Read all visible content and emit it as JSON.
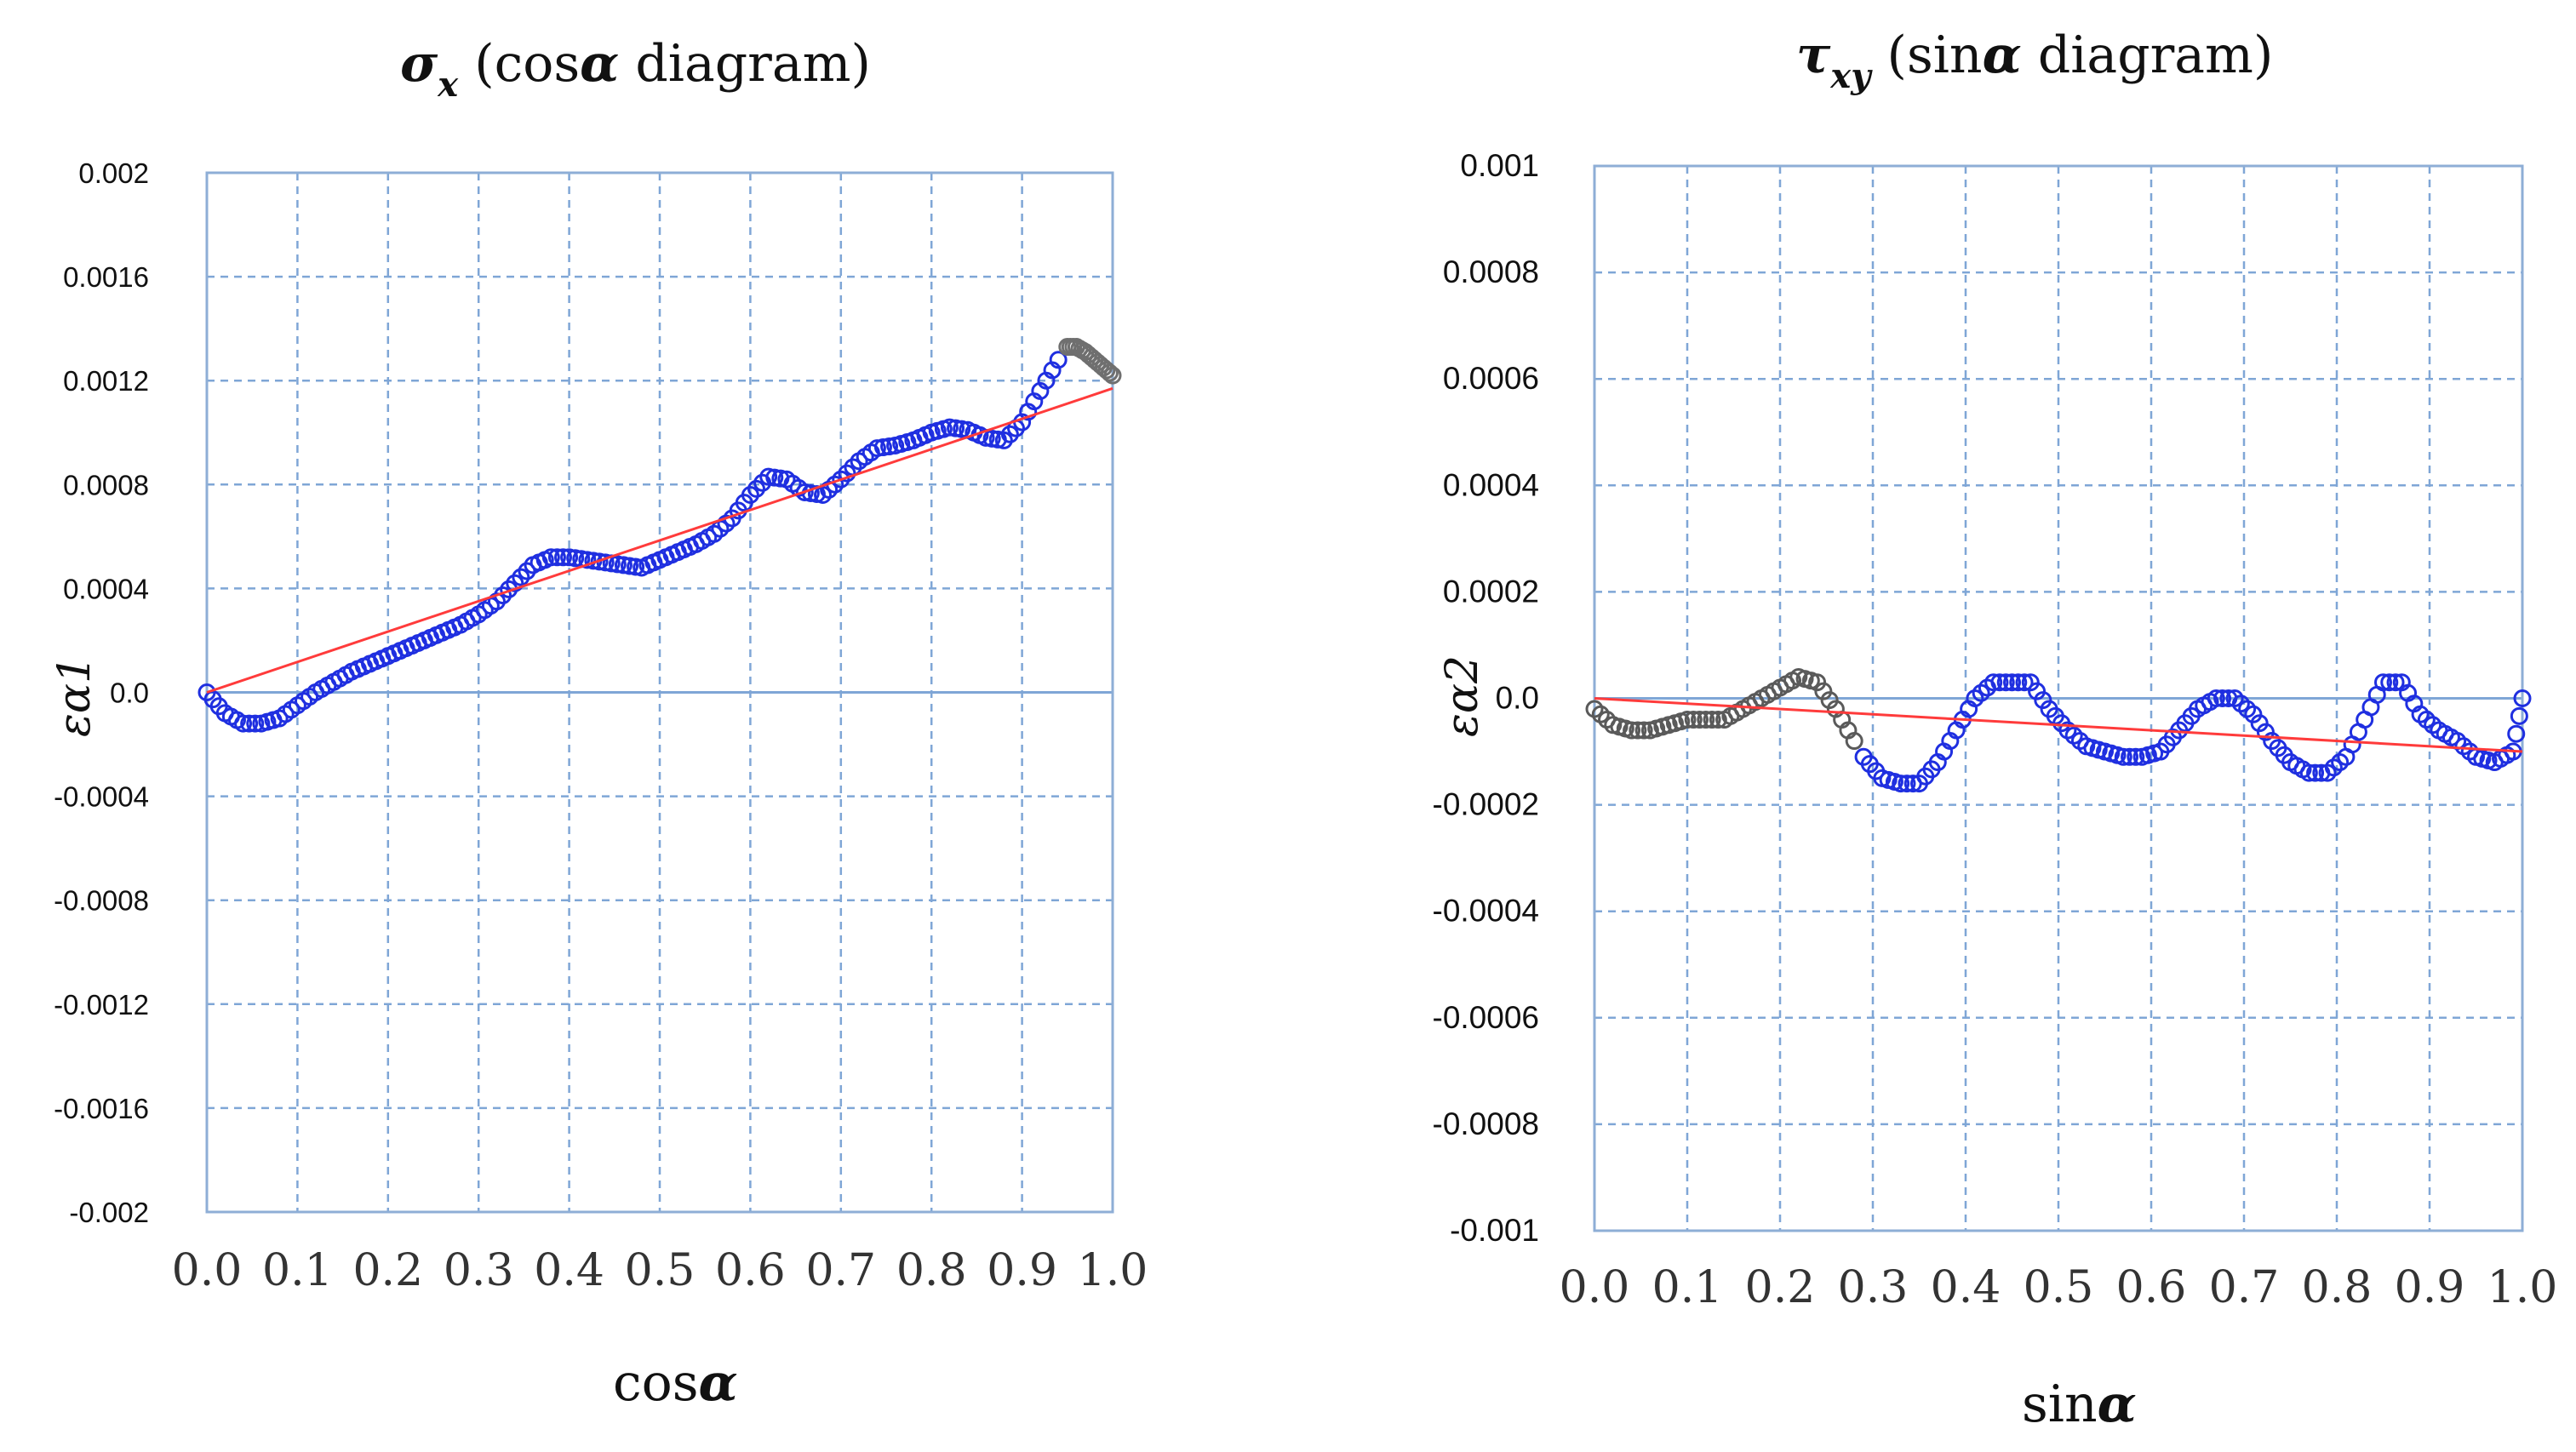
{
  "charts": {
    "left": {
      "title_symbol": "σ",
      "title_subscript": "x",
      "title_text": "(cos",
      "title_alpha": "α",
      "title_end": "diagram)",
      "xlabel_text": "cos",
      "xlabel_alpha": "α",
      "ylabel": "εα1"
    },
    "right": {
      "title_symbol": "τ",
      "title_subscript": "xy",
      "title_text": "(sin",
      "title_alpha": "α",
      "title_end": "diagram)",
      "xlabel_text": "sin",
      "xlabel_alpha": "α",
      "ylabel": "εα2"
    }
  },
  "colors": {
    "grid": "#7fa6d6",
    "frame": "#8eaed6",
    "measured": "#1f2fe0",
    "excluded_left": "#6f6f6f",
    "excluded_right": "#5a5a5a",
    "fit": "#ff3b3b"
  },
  "chart_data": [
    {
      "type": "scatter",
      "title": "σx (cos α diagram)",
      "xlabel": "cos α",
      "ylabel": "εα1",
      "xlim": [
        0.0,
        1.0
      ],
      "ylim": [
        -0.002,
        0.002
      ],
      "xticks": [
        "0.0",
        "0.1",
        "0.2",
        "0.3",
        "0.4",
        "0.5",
        "0.6",
        "0.7",
        "0.8",
        "0.9",
        "1.0"
      ],
      "yticks": [
        "0.002",
        "0.0016",
        "0.0012",
        "0.0008",
        "0.0004",
        "0.0",
        "-0.0004",
        "-0.0008",
        "-0.0012",
        "-0.0016",
        "-0.002"
      ],
      "grid": true,
      "series": [
        {
          "role": "measured",
          "x": [
            0.0,
            0.02,
            0.04,
            0.06,
            0.08,
            0.1,
            0.12,
            0.14,
            0.16,
            0.18,
            0.2,
            0.22,
            0.24,
            0.26,
            0.28,
            0.3,
            0.32,
            0.34,
            0.36,
            0.38,
            0.4,
            0.42,
            0.44,
            0.46,
            0.48,
            0.5,
            0.52,
            0.54,
            0.56,
            0.58,
            0.6,
            0.62,
            0.64,
            0.66,
            0.68,
            0.7,
            0.72,
            0.74,
            0.76,
            0.78,
            0.8,
            0.82,
            0.84,
            0.86,
            0.88,
            0.9,
            0.92,
            0.94
          ],
          "y": [
            0.0,
            -8e-05,
            -0.00012,
            -0.00012,
            -0.0001,
            -5e-05,
            0.0,
            4e-05,
            8e-05,
            0.00011,
            0.00014,
            0.00017,
            0.0002,
            0.00023,
            0.00026,
            0.0003,
            0.00035,
            0.00042,
            0.00049,
            0.00052,
            0.00052,
            0.00051,
            0.0005,
            0.00049,
            0.00048,
            0.00051,
            0.00054,
            0.00057,
            0.00061,
            0.00067,
            0.00076,
            0.00083,
            0.00082,
            0.00077,
            0.00076,
            0.00082,
            0.00089,
            0.00094,
            0.00095,
            0.00097,
            0.001,
            0.00102,
            0.00101,
            0.00098,
            0.00097,
            0.00104,
            0.00116,
            0.00128
          ]
        },
        {
          "role": "excluded",
          "x": [
            0.95,
            0.96,
            0.97,
            0.98,
            0.99,
            1.0
          ],
          "y": [
            0.00133,
            0.00133,
            0.00131,
            0.00128,
            0.00125,
            0.00122
          ]
        },
        {
          "role": "fit",
          "x": [
            0.0,
            1.0
          ],
          "y": [
            0.0,
            0.00117
          ]
        }
      ]
    },
    {
      "type": "scatter",
      "title": "τxy (sin α diagram)",
      "xlabel": "sin α",
      "ylabel": "εα2",
      "xlim": [
        0.0,
        1.0
      ],
      "ylim": [
        -0.001,
        0.001
      ],
      "xticks": [
        "0.0",
        "0.1",
        "0.2",
        "0.3",
        "0.4",
        "0.5",
        "0.6",
        "0.7",
        "0.8",
        "0.9",
        "1.0"
      ],
      "yticks": [
        "0.001",
        "0.0008",
        "0.0006",
        "0.0004",
        "0.0002",
        "0.0",
        "-0.0002",
        "-0.0004",
        "-0.0006",
        "-0.0008",
        "-0.001"
      ],
      "grid": true,
      "series": [
        {
          "role": "excluded",
          "x": [
            0.0,
            0.02,
            0.04,
            0.06,
            0.08,
            0.1,
            0.12,
            0.14,
            0.16,
            0.18,
            0.2,
            0.22,
            0.24,
            0.26,
            0.28
          ],
          "y": [
            -2e-05,
            -5e-05,
            -6e-05,
            -6e-05,
            -5e-05,
            -4e-05,
            -4e-05,
            -4e-05,
            -2e-05,
            0.0,
            2e-05,
            4e-05,
            3e-05,
            -2e-05,
            -8e-05
          ]
        },
        {
          "role": "measured",
          "x": [
            0.29,
            0.31,
            0.33,
            0.35,
            0.37,
            0.39,
            0.41,
            0.43,
            0.45,
            0.47,
            0.49,
            0.51,
            0.53,
            0.55,
            0.57,
            0.59,
            0.61,
            0.63,
            0.65,
            0.67,
            0.69,
            0.71,
            0.73,
            0.75,
            0.77,
            0.79,
            0.81,
            0.83,
            0.85,
            0.87,
            0.89,
            0.91,
            0.93,
            0.95,
            0.97,
            0.99,
            1.0
          ],
          "y": [
            -0.00011,
            -0.00015,
            -0.00016,
            -0.00016,
            -0.00012,
            -6e-05,
            0.0,
            3e-05,
            3e-05,
            3e-05,
            -2e-05,
            -6e-05,
            -9e-05,
            -0.0001,
            -0.00011,
            -0.00011,
            -0.0001,
            -6e-05,
            -2e-05,
            0.0,
            0.0,
            -3e-05,
            -8e-05,
            -0.00012,
            -0.00014,
            -0.00014,
            -0.00011,
            -4e-05,
            3e-05,
            3e-05,
            -3e-05,
            -6e-05,
            -8e-05,
            -0.00011,
            -0.00012,
            -0.0001,
            0.0
          ]
        },
        {
          "role": "fit",
          "x": [
            0.0,
            1.0
          ],
          "y": [
            0.0,
            -0.0001
          ]
        }
      ]
    }
  ]
}
